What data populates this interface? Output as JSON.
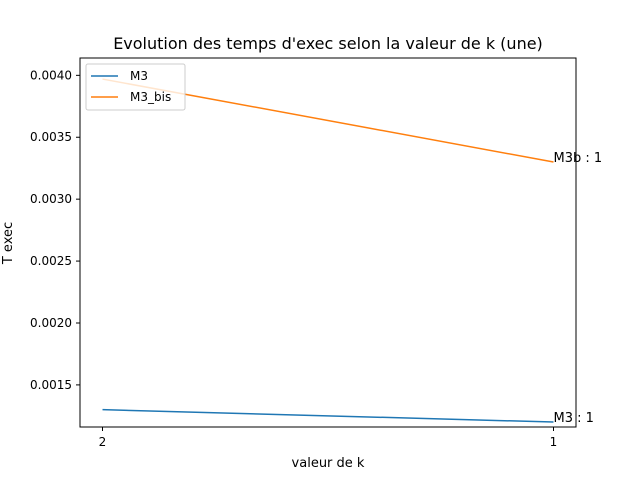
{
  "chart_data": {
    "type": "line",
    "title": "Evolution des temps d'exec selon la valeur de k (une)",
    "xlabel": "valeur de k",
    "ylabel": "T exec",
    "categories": [
      "2",
      "1"
    ],
    "series": [
      {
        "name": "M3",
        "values": [
          0.0013,
          0.0012
        ],
        "color": "#1f77b4"
      },
      {
        "name": "M3_bis",
        "values": [
          0.00397,
          0.0033
        ],
        "color": "#ff7f0e"
      }
    ],
    "ylim": [
      0.00116,
      0.00414
    ],
    "yticks": [
      0.0015,
      0.002,
      0.0025,
      0.003,
      0.0035,
      0.004
    ],
    "ytick_labels": [
      "0.0015",
      "0.0020",
      "0.0025",
      "0.0030",
      "0.0035",
      "0.0040"
    ],
    "annotations": [
      {
        "text": "M3b : 1",
        "x_index": 1,
        "y": 0.0033
      },
      {
        "text": "M3 : 1",
        "x_index": 1,
        "y": 0.0012
      }
    ],
    "legend": {
      "position": "top-left"
    },
    "grid": false
  }
}
